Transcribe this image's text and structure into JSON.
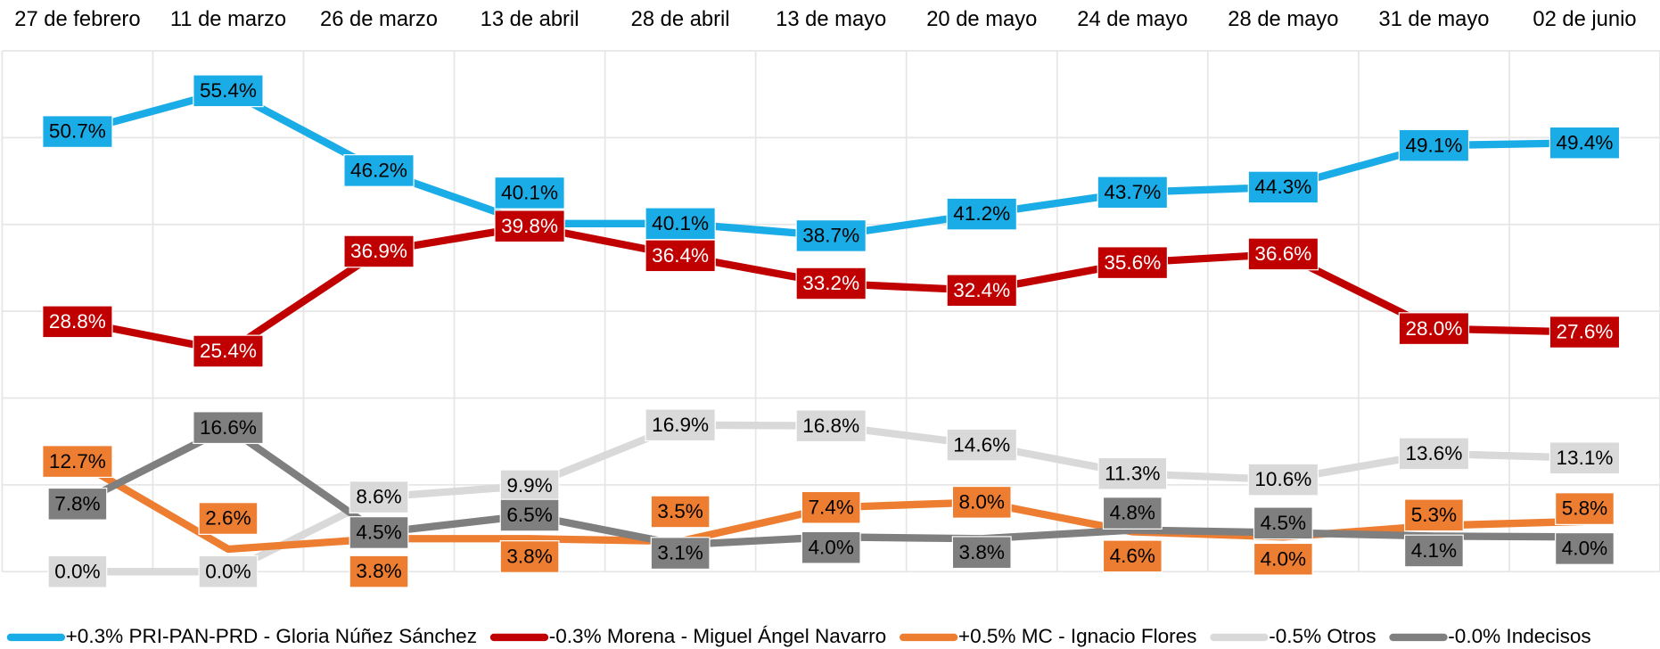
{
  "chart_data": {
    "type": "line",
    "categories": [
      "27 de febrero",
      "11 de marzo",
      "26 de marzo",
      "13 de abril",
      "28 de abril",
      "13 de mayo",
      "20 de mayo",
      "24 de mayo",
      "28 de mayo",
      "31 de mayo",
      "02 de junio"
    ],
    "ylim": [
      0,
      60
    ],
    "yticks": [
      0,
      10,
      20,
      30,
      40,
      50,
      60
    ],
    "grid": true,
    "series": [
      {
        "name": "+0.3% PRI-PAN-PRD - Gloria Núñez Sánchez",
        "color": "#1aace6",
        "label_text_color": "#000000",
        "values": [
          50.7,
          55.4,
          46.2,
          40.1,
          40.1,
          38.7,
          41.2,
          43.7,
          44.3,
          49.1,
          49.4
        ],
        "value_labels": [
          "50.7%",
          "55.4%",
          "46.2%",
          "40.1%",
          "40.1%",
          "38.7%",
          "41.2%",
          "43.7%",
          "44.3%",
          "49.1%",
          "49.4%"
        ]
      },
      {
        "name": "-0.3% Morena - Miguel Ángel Navarro",
        "color": "#c00000",
        "label_text_color": "#ffffff",
        "values": [
          28.8,
          25.4,
          36.9,
          39.8,
          36.4,
          33.2,
          32.4,
          35.6,
          36.6,
          28.0,
          27.6
        ],
        "value_labels": [
          "28.8%",
          "25.4%",
          "36.9%",
          "39.8%",
          "36.4%",
          "33.2%",
          "32.4%",
          "35.6%",
          "36.6%",
          "28.0%",
          "27.6%"
        ]
      },
      {
        "name": "+0.5% MC - Ignacio Flores",
        "color": "#ed7d31",
        "label_text_color": "#000000",
        "values": [
          12.7,
          2.6,
          3.8,
          3.8,
          3.5,
          7.4,
          8.0,
          4.6,
          4.0,
          5.3,
          5.8
        ],
        "value_labels": [
          "12.7%",
          "2.6%",
          "3.8%",
          "3.8%",
          "3.5%",
          "7.4%",
          "8.0%",
          "4.6%",
          "4.0%",
          "5.3%",
          "5.8%"
        ]
      },
      {
        "name": "-0.5% Otros",
        "color": "#d9d9d9",
        "label_text_color": "#000000",
        "values": [
          0.0,
          0.0,
          8.6,
          9.9,
          16.9,
          16.8,
          14.6,
          11.3,
          10.6,
          13.6,
          13.1
        ],
        "value_labels": [
          "0.0%",
          "0.0%",
          "8.6%",
          "9.9%",
          "16.9%",
          "16.8%",
          "14.6%",
          "11.3%",
          "10.6%",
          "13.6%",
          "13.1%"
        ]
      },
      {
        "name": "-0.0% Indecisos",
        "color": "#7f7f7f",
        "label_text_color": "#000000",
        "values": [
          7.8,
          16.6,
          4.5,
          6.5,
          3.1,
          4.0,
          3.8,
          4.8,
          4.5,
          4.1,
          4.0
        ],
        "value_labels": [
          "7.8%",
          "16.6%",
          "4.5%",
          "6.5%",
          "3.1%",
          "4.0%",
          "3.8%",
          "4.8%",
          "4.5%",
          "4.1%",
          "4.0%"
        ]
      }
    ]
  }
}
